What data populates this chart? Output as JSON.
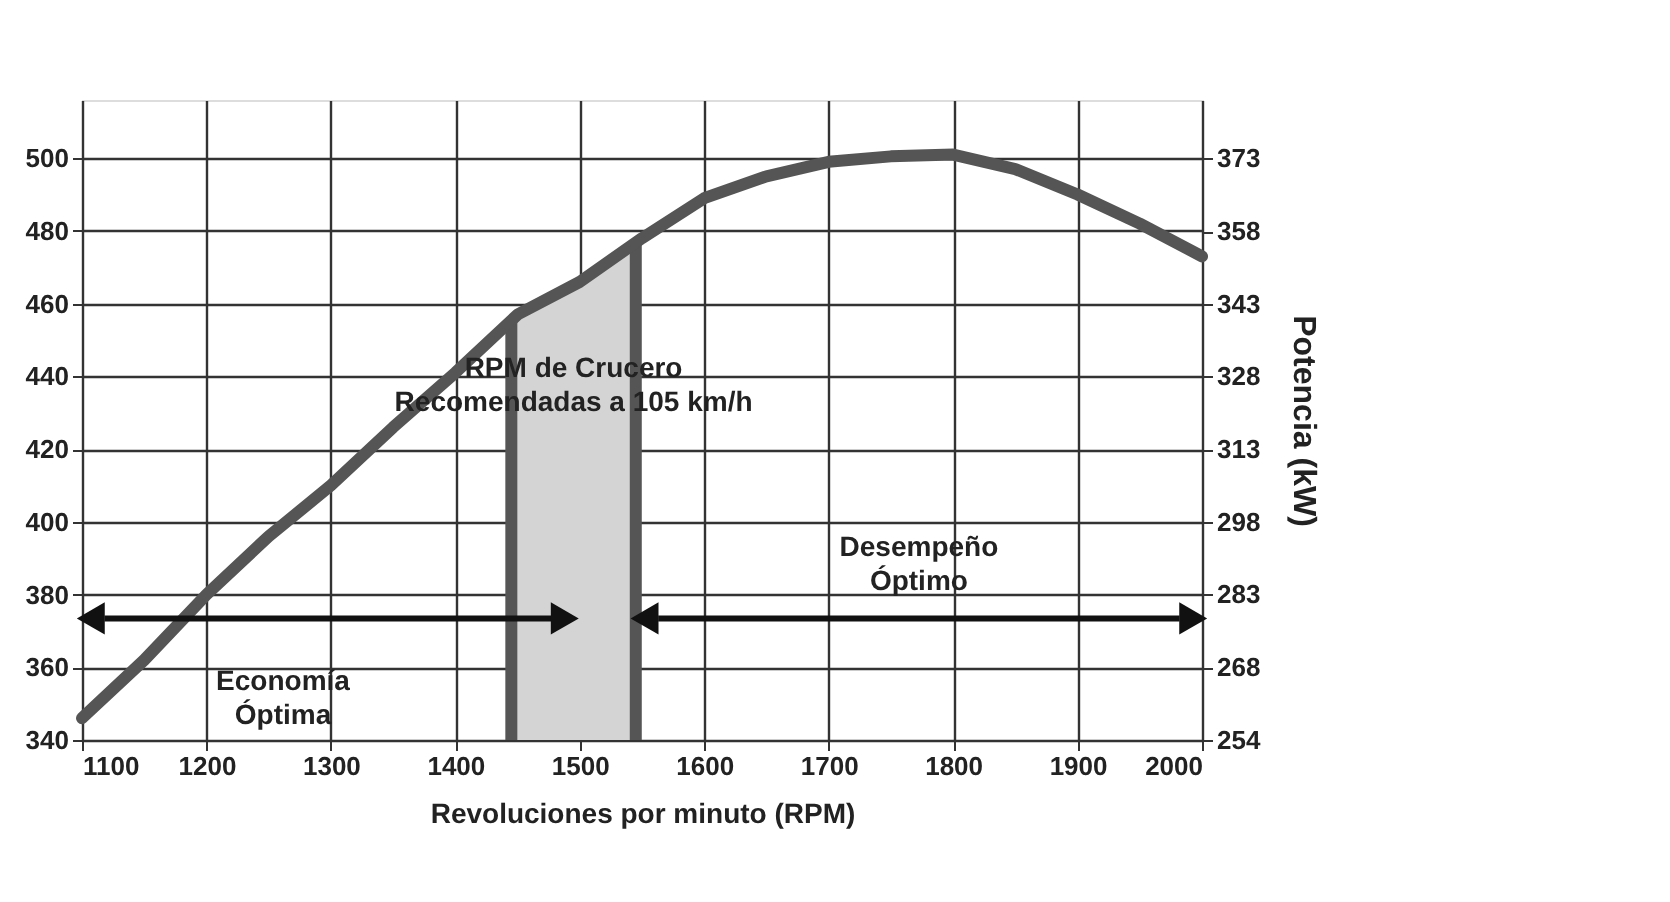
{
  "chart_data": {
    "type": "line",
    "xlabel": "Revoluciones por minuto (RPM)",
    "y2label": "Potencia (kW)",
    "x": [
      1100,
      1150,
      1200,
      1250,
      1300,
      1350,
      1400,
      1450,
      1500,
      1550,
      1600,
      1650,
      1700,
      1750,
      1800,
      1850,
      1900,
      1950,
      2000
    ],
    "series": [
      {
        "color": "#555555",
        "values": [
          346,
          362,
          380,
          396,
          410,
          426,
          441,
          457,
          466,
          478,
          489,
          495,
          499,
          500.5,
          501,
          497,
          490,
          482,
          473
        ]
      }
    ],
    "xlim": [
      1100,
      2000
    ],
    "xticks": [
      1100,
      1200,
      1300,
      1400,
      1500,
      1600,
      1700,
      1800,
      1900,
      2000
    ],
    "ylim": [
      340,
      516
    ],
    "yticks": [
      340,
      360,
      380,
      400,
      420,
      440,
      460,
      480,
      500
    ],
    "y2lim": [
      253.5,
      384.8
    ],
    "y2ticks": [
      {
        "value": 253.5,
        "label": "254"
      },
      {
        "value": 268.4,
        "label": "268"
      },
      {
        "value": 283.4,
        "label": "283"
      },
      {
        "value": 298.3,
        "label": "298"
      },
      {
        "value": 313.2,
        "label": "313"
      },
      {
        "value": 328.1,
        "label": "328"
      },
      {
        "value": 343.0,
        "label": "343"
      },
      {
        "value": 357.9,
        "label": "358"
      },
      {
        "value": 372.9,
        "label": "373"
      }
    ],
    "bands": [
      {
        "axis": "x",
        "from": 1445,
        "to": 1545,
        "color": "#d4d4d4"
      }
    ],
    "ref_lines": [
      {
        "axis": "x",
        "value": 1445,
        "color": "#555555"
      },
      {
        "axis": "x",
        "value": 1545,
        "color": "#555555"
      }
    ],
    "annotations": [
      "RPM de Crucero\nRecomendadas a 105 km/h",
      "Economía\nÓptima",
      "Desempeño\nÓptimo"
    ],
    "grid": true,
    "marker": "none",
    "line_style": "solid"
  }
}
